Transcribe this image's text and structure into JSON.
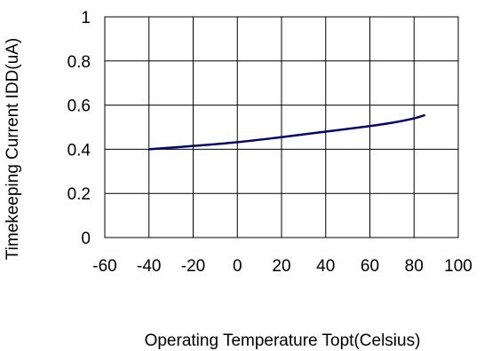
{
  "chart_data": {
    "type": "line",
    "title": "",
    "xlabel": "Operating Temperature Topt(Celsius)",
    "ylabel": "Timekeeping Current IDD(uA)",
    "xlim": [
      -60,
      100
    ],
    "ylim": [
      0,
      1
    ],
    "x_ticks": [
      "-60",
      "-40",
      "-20",
      "0",
      "20",
      "40",
      "60",
      "80",
      "100"
    ],
    "y_ticks": [
      "0",
      "0.2",
      "0.4",
      "0.6",
      "0.8",
      "1"
    ],
    "grid": true,
    "legend": "none",
    "series": [
      {
        "color": "#000080",
        "x": [
          -40,
          -20,
          0,
          20,
          40,
          60,
          70,
          80,
          85
        ],
        "y": [
          0.4,
          0.415,
          0.432,
          0.455,
          0.48,
          0.505,
          0.52,
          0.54,
          0.555
        ]
      }
    ]
  }
}
